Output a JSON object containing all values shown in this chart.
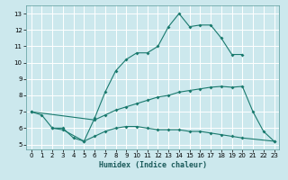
{
  "xlabel": "Humidex (Indice chaleur)",
  "bg_color": "#cce8ed",
  "grid_color": "#ffffff",
  "line_color": "#1a7a6e",
  "xlim": [
    -0.5,
    23.5
  ],
  "ylim": [
    4.7,
    13.5
  ],
  "xticks": [
    0,
    1,
    2,
    3,
    4,
    5,
    6,
    7,
    8,
    9,
    10,
    11,
    12,
    13,
    14,
    15,
    16,
    17,
    18,
    19,
    20,
    21,
    22,
    23
  ],
  "yticks": [
    5,
    6,
    7,
    8,
    9,
    10,
    11,
    12,
    13
  ],
  "line1_x": [
    0,
    1,
    2,
    3,
    4,
    5,
    6,
    7,
    8,
    9,
    10,
    11,
    12,
    13,
    14,
    15,
    16,
    17,
    18,
    19,
    20
  ],
  "line1_y": [
    7.0,
    6.8,
    6.0,
    6.0,
    5.4,
    5.2,
    6.6,
    8.2,
    9.5,
    10.2,
    10.6,
    10.6,
    11.0,
    12.2,
    13.0,
    12.2,
    12.3,
    12.3,
    11.5,
    10.5,
    10.5
  ],
  "line2_x": [
    0,
    6,
    7,
    8,
    9,
    10,
    11,
    12,
    13,
    14,
    15,
    16,
    17,
    18,
    19,
    20,
    21,
    22,
    23
  ],
  "line2_y": [
    7.0,
    6.5,
    6.8,
    7.1,
    7.3,
    7.5,
    7.7,
    7.9,
    8.0,
    8.2,
    8.3,
    8.4,
    8.5,
    8.55,
    8.5,
    8.55,
    7.0,
    5.8,
    5.2
  ],
  "line3_x": [
    2,
    3,
    5,
    6,
    7,
    8,
    9,
    10,
    11,
    12,
    13,
    14,
    15,
    16,
    17,
    18,
    19,
    20,
    23
  ],
  "line3_y": [
    6.0,
    5.9,
    5.2,
    5.5,
    5.8,
    6.0,
    6.1,
    6.1,
    6.0,
    5.9,
    5.9,
    5.9,
    5.8,
    5.8,
    5.7,
    5.6,
    5.5,
    5.4,
    5.2
  ]
}
